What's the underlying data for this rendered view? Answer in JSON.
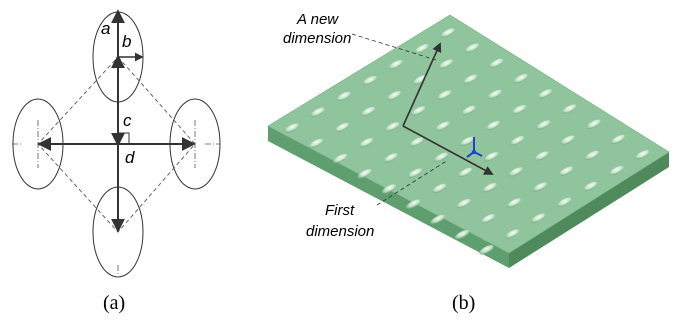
{
  "panel_a": {
    "caption": "(a)",
    "labels": {
      "a": "a",
      "b": "b",
      "c": "c",
      "d": "d"
    }
  },
  "panel_b": {
    "caption": "(b)",
    "annotation_new": [
      "A new",
      "dimension"
    ],
    "annotation_first": [
      "First",
      "dimension"
    ]
  },
  "colors": {
    "plate_top": "#8fc49c",
    "plate_front": "#5f9e6e",
    "plate_side": "#4e8a5c",
    "line": "#333333",
    "axis_blue": "#1f3fd6"
  }
}
